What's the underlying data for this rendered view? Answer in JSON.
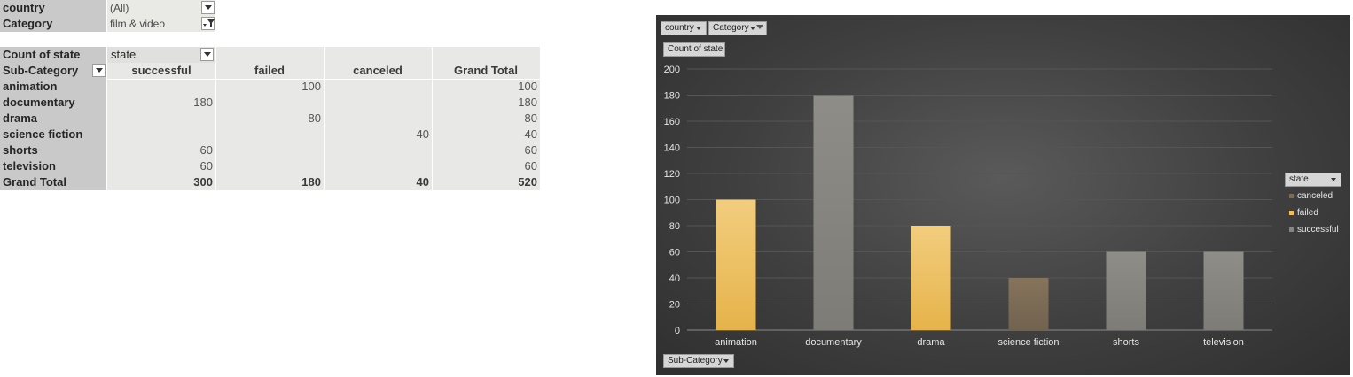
{
  "filters": {
    "country": {
      "label": "country",
      "value": "(All)"
    },
    "category": {
      "label": "Category",
      "value": "film & video"
    }
  },
  "pivot": {
    "measure_label": "Count of state",
    "column_field": "state",
    "row_field": "Sub-Category",
    "columns": [
      "successful",
      "failed",
      "canceled",
      "Grand Total"
    ],
    "rows": [
      {
        "label": "animation",
        "values": [
          "",
          "100",
          "",
          "100"
        ]
      },
      {
        "label": "documentary",
        "values": [
          "180",
          "",
          "",
          "180"
        ]
      },
      {
        "label": "drama",
        "values": [
          "",
          "80",
          "",
          "80"
        ]
      },
      {
        "label": "science fiction",
        "values": [
          "",
          "",
          "40",
          "40"
        ]
      },
      {
        "label": "shorts",
        "values": [
          "60",
          "",
          "",
          "60"
        ]
      },
      {
        "label": "television",
        "values": [
          "60",
          "",
          "",
          "60"
        ]
      }
    ],
    "total": {
      "label": "Grand Total",
      "values": [
        "300",
        "180",
        "40",
        "520"
      ]
    }
  },
  "chart": {
    "buttons": {
      "country": "country",
      "category": "Category",
      "measure": "Count of state",
      "axis": "Sub-Category",
      "legend": "state"
    },
    "colors": {
      "canceled": "#7d6b55",
      "failed": "#f0c060",
      "successful": "#86857f"
    }
  },
  "chart_data": {
    "type": "bar",
    "categories": [
      "animation",
      "documentary",
      "drama",
      "science fiction",
      "shorts",
      "television"
    ],
    "series": [
      {
        "name": "canceled",
        "values": [
          0,
          0,
          0,
          40,
          0,
          0
        ]
      },
      {
        "name": "failed",
        "values": [
          100,
          0,
          80,
          0,
          0,
          0
        ]
      },
      {
        "name": "successful",
        "values": [
          0,
          180,
          0,
          0,
          60,
          60
        ]
      }
    ],
    "ylim": [
      0,
      200
    ],
    "yticks": [
      0,
      20,
      40,
      60,
      80,
      100,
      120,
      140,
      160,
      180,
      200
    ],
    "grid": true,
    "legend_position": "right"
  }
}
